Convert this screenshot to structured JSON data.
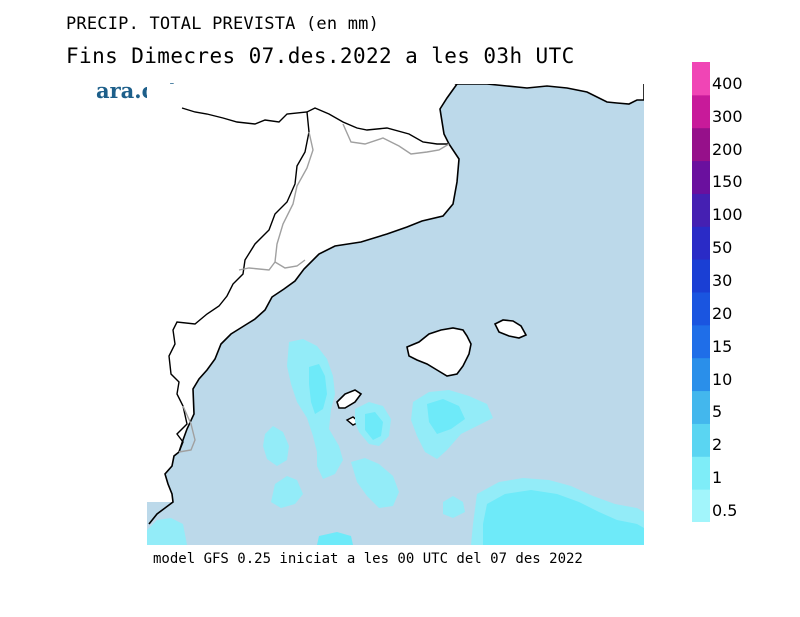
{
  "header": {
    "title": "PRECIP. TOTAL PREVISTA (en mm)",
    "subtitle": "Fins Dimecres  07.des.2022 a les 03h UTC",
    "brand": "ara.cat"
  },
  "footer": {
    "model_info": "model GFS 0.25 iniciat a les 00 UTC del 07 des 2022"
  },
  "colors": {
    "sea": "#bcd9ea",
    "land": "#ffffff",
    "coast": "#000000",
    "borders": "#a0a0a0",
    "precip_0_5": "#93ecf8",
    "precip_1": "#6eeaf9"
  },
  "legend": {
    "unit": "mm",
    "levels": [
      {
        "label": "0.5",
        "color": "#a2f5fb"
      },
      {
        "label": "1",
        "color": "#7eedf8"
      },
      {
        "label": "2",
        "color": "#5ad5f2"
      },
      {
        "label": "5",
        "color": "#43b7ed"
      },
      {
        "label": "10",
        "color": "#2a8fea"
      },
      {
        "label": "15",
        "color": "#1f6ee8"
      },
      {
        "label": "20",
        "color": "#1a55e0"
      },
      {
        "label": "30",
        "color": "#1a3fd4"
      },
      {
        "label": "50",
        "color": "#2a2bc6"
      },
      {
        "label": "100",
        "color": "#4520b2"
      },
      {
        "label": "150",
        "color": "#6a109e"
      },
      {
        "label": "200",
        "color": "#96108a"
      },
      {
        "label": "300",
        "color": "#c81a9a"
      },
      {
        "label": "400",
        "color": "#f045b5"
      }
    ]
  }
}
